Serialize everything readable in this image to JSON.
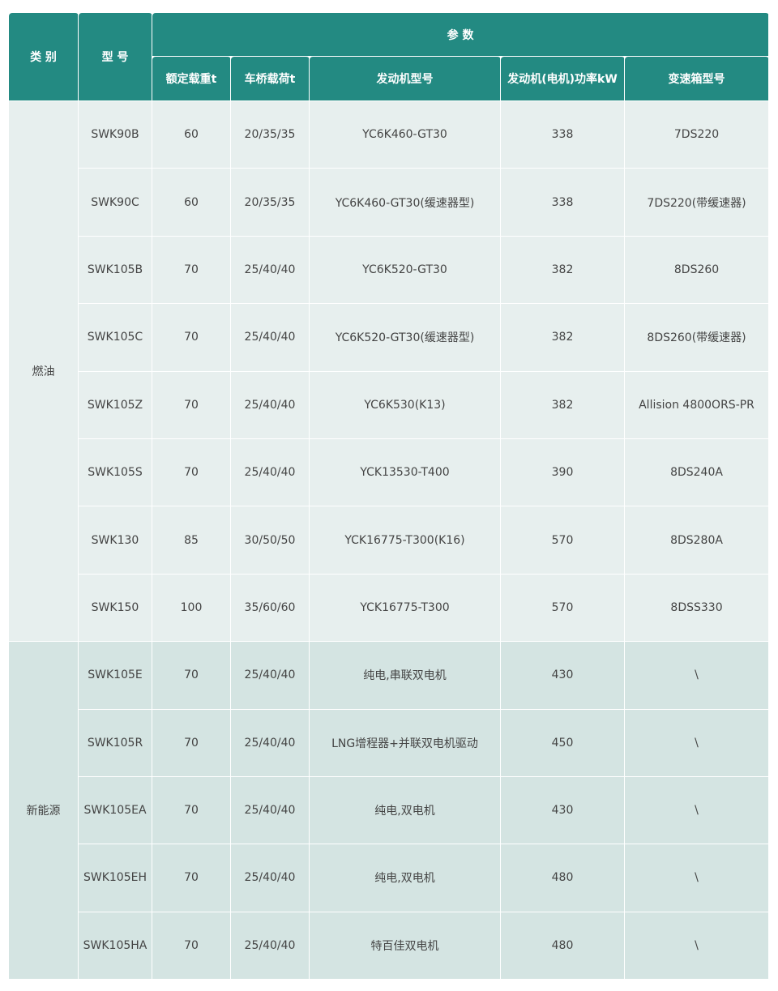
{
  "header": {
    "category": "类 别",
    "model": "型 号",
    "params": "参 数",
    "columns": [
      "额定载重t",
      "车桥载荷t",
      "发动机型号",
      "发动机(电机)功率kW",
      "变速箱型号"
    ]
  },
  "groups": [
    {
      "category": "燃油",
      "rows": [
        [
          "SWK90B",
          "60",
          "20/35/35",
          "YC6K460-GT30",
          "338",
          "7DS220"
        ],
        [
          "SWK90C",
          "60",
          "20/35/35",
          "YC6K460-GT30(缓速器型)",
          "338",
          "7DS220(带缓速器)"
        ],
        [
          "SWK105B",
          "70",
          "25/40/40",
          "YC6K520-GT30",
          "382",
          "8DS260"
        ],
        [
          "SWK105C",
          "70",
          "25/40/40",
          "YC6K520-GT30(缓速器型)",
          "382",
          "8DS260(带缓速器)"
        ],
        [
          "SWK105Z",
          "70",
          "25/40/40",
          "YC6K530(K13)",
          "382",
          "Allision 4800ORS-PR"
        ],
        [
          "SWK105S",
          "70",
          "25/40/40",
          "YCK13530-T400",
          "390",
          "8DS240A"
        ],
        [
          "SWK130",
          "85",
          "30/50/50",
          "YCK16775-T300(K16)",
          "570",
          "8DS280A"
        ],
        [
          "SWK150",
          "100",
          "35/60/60",
          "YCK16775-T300",
          "570",
          "8DSS330"
        ]
      ]
    },
    {
      "category": "新能源",
      "rows": [
        [
          "SWK105E",
          "70",
          "25/40/40",
          "纯电,串联双电机",
          "430",
          "\\"
        ],
        [
          "SWK105R",
          "70",
          "25/40/40",
          "LNG增程器+并联双电机驱动",
          "450",
          "\\"
        ],
        [
          "SWK105EA",
          "70",
          "25/40/40",
          "纯电,双电机",
          "430",
          "\\"
        ],
        [
          "SWK105EH",
          "70",
          "25/40/40",
          "纯电,双电机",
          "480",
          "\\"
        ],
        [
          "SWK105HA",
          "70",
          "25/40/40",
          "特百佳双电机",
          "480",
          "\\"
        ]
      ]
    }
  ],
  "colors": {
    "header": "#238a82",
    "fuel_row": "#e7efee",
    "new_energy_row": "#d4e4e2",
    "text": "#444444"
  }
}
